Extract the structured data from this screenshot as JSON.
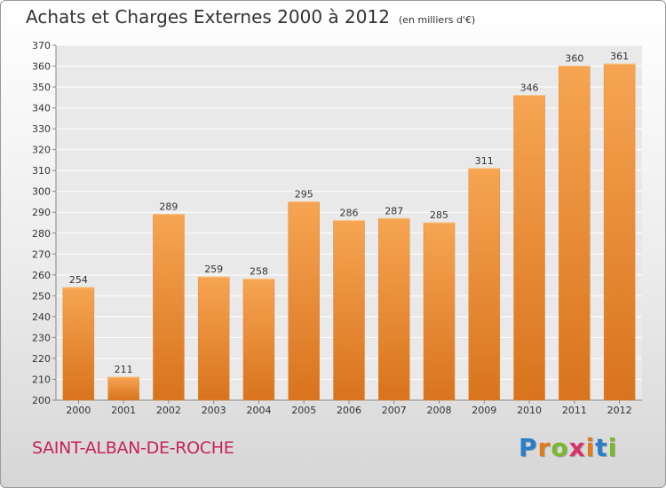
{
  "header": {
    "title": "Achats et Charges Externes 2000 à 2012",
    "unit": "(en milliers d'€)"
  },
  "footer": {
    "commune": "SAINT-ALBAN-DE-ROCHE",
    "logo_text": "Proxiti",
    "logo_colors": [
      "#2a7fc9",
      "#e07a1a",
      "#7ab82e",
      "#d6336c",
      "#e07a1a",
      "#2a7fc9",
      "#7ab82e"
    ]
  },
  "colors": {
    "bar_top": "#f6a552",
    "bar_bottom": "#d9731d",
    "commune_text": "#c8225a"
  },
  "chart_data": {
    "type": "bar",
    "categories": [
      "2000",
      "2001",
      "2002",
      "2003",
      "2004",
      "2005",
      "2006",
      "2007",
      "2008",
      "2009",
      "2010",
      "2011",
      "2012"
    ],
    "values": [
      254,
      211,
      289,
      259,
      258,
      295,
      286,
      287,
      285,
      311,
      346,
      360,
      361
    ],
    "ylim": [
      200,
      370
    ],
    "yticks": [
      200,
      210,
      220,
      230,
      240,
      250,
      260,
      270,
      280,
      290,
      300,
      310,
      320,
      330,
      340,
      350,
      360,
      370
    ],
    "grid": true,
    "data_labels": true
  }
}
